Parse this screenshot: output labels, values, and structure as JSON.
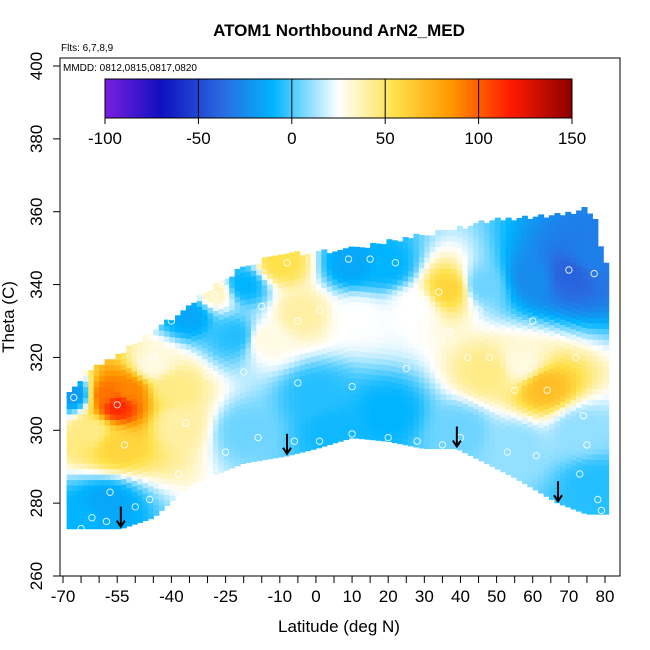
{
  "chart_data": {
    "type": "heatmap",
    "title": "ATOM1 Northbound ArN2_MED",
    "subtitle_lines": [
      "Flts: 6,7,8,9",
      "MMDD: 0812,0815,0817,0820"
    ],
    "xlabel": "Latitude (deg N)",
    "ylabel": "Theta (C)",
    "xlim": [
      -70,
      80
    ],
    "ylim": [
      260,
      400
    ],
    "x_ticks": [
      -70,
      -55,
      -40,
      -25,
      -10,
      0,
      10,
      20,
      30,
      40,
      50,
      60,
      70,
      80
    ],
    "x_tick_labels": [
      "-70",
      "-55",
      "-40",
      "-25",
      "-10",
      "0",
      "10",
      "20",
      "30",
      "40",
      "50",
      "60",
      "70",
      "80"
    ],
    "y_ticks": [
      260,
      280,
      300,
      320,
      340,
      360,
      380,
      400
    ],
    "y_tick_labels": [
      "260",
      "280",
      "300",
      "320",
      "340",
      "360",
      "380",
      "400"
    ],
    "colorbar": {
      "range": [
        -100,
        150
      ],
      "ticks": [
        -100,
        -50,
        0,
        50,
        100,
        150
      ],
      "tick_labels": [
        "-100",
        "-50",
        "0",
        "50",
        "100",
        "150"
      ],
      "colors": [
        "#7b1fe0",
        "#1010c0",
        "#2a6ae0",
        "#00b4ff",
        "#ffffff",
        "#ffe14a",
        "#ff9800",
        "#ff1a00",
        "#8b0000"
      ]
    },
    "arrows_lat": [
      -54,
      -8,
      39,
      67
    ],
    "top_boundary": [
      [
        -69,
        309
      ],
      [
        -64,
        315
      ],
      [
        -58,
        318
      ],
      [
        -50,
        323
      ],
      [
        -44,
        327
      ],
      [
        -36,
        333
      ],
      [
        -28,
        339
      ],
      [
        -20,
        344
      ],
      [
        -10,
        348
      ],
      [
        0,
        348
      ],
      [
        10,
        349
      ],
      [
        20,
        351
      ],
      [
        30,
        353
      ],
      [
        40,
        355
      ],
      [
        50,
        357
      ],
      [
        60,
        358
      ],
      [
        70,
        359
      ],
      [
        75,
        360
      ],
      [
        77,
        358
      ],
      [
        80,
        345
      ]
    ],
    "bottom_boundary": [
      [
        80,
        277
      ],
      [
        75,
        277
      ],
      [
        67,
        280
      ],
      [
        55,
        287
      ],
      [
        45,
        292
      ],
      [
        39,
        295
      ],
      [
        30,
        295
      ],
      [
        20,
        297
      ],
      [
        10,
        298
      ],
      [
        0,
        295
      ],
      [
        -8,
        293
      ],
      [
        -20,
        291
      ],
      [
        -35,
        285
      ],
      [
        -45,
        276
      ],
      [
        -54,
        273
      ],
      [
        -69,
        273
      ]
    ],
    "field_samples": [
      {
        "lat": -55,
        "theta": 307,
        "value": 115
      },
      {
        "lat": -58,
        "theta": 310,
        "value": 95
      },
      {
        "lat": -52,
        "theta": 311,
        "value": 90
      },
      {
        "lat": -55,
        "theta": 296,
        "value": 60
      },
      {
        "lat": -62,
        "theta": 300,
        "value": 45
      },
      {
        "lat": -38,
        "theta": 302,
        "value": 40
      },
      {
        "lat": -40,
        "theta": 312,
        "value": 45
      },
      {
        "lat": -45,
        "theta": 318,
        "value": 30
      },
      {
        "lat": -28,
        "theta": 338,
        "value": 35
      },
      {
        "lat": -10,
        "theta": 346,
        "value": 55
      },
      {
        "lat": -4,
        "theta": 332,
        "value": 40
      },
      {
        "lat": -14,
        "theta": 325,
        "value": 30
      },
      {
        "lat": 12,
        "theta": 331,
        "value": 25
      },
      {
        "lat": 27,
        "theta": 334,
        "value": 25
      },
      {
        "lat": 37,
        "theta": 339,
        "value": 60
      },
      {
        "lat": 48,
        "theta": 316,
        "value": 45
      },
      {
        "lat": 63,
        "theta": 312,
        "value": 70
      },
      {
        "lat": 57,
        "theta": 318,
        "value": 30
      },
      {
        "lat": 46,
        "theta": 340,
        "value": 5
      },
      {
        "lat": 70,
        "theta": 343,
        "value": -40
      },
      {
        "lat": 60,
        "theta": 342,
        "value": -25
      },
      {
        "lat": 76,
        "theta": 348,
        "value": -30
      },
      {
        "lat": 10,
        "theta": 346,
        "value": -15
      },
      {
        "lat": 20,
        "theta": 345,
        "value": -10
      },
      {
        "lat": -20,
        "theta": 340,
        "value": -10
      },
      {
        "lat": -22,
        "theta": 326,
        "value": -5
      },
      {
        "lat": 0,
        "theta": 310,
        "value": -5
      },
      {
        "lat": 20,
        "theta": 305,
        "value": -10
      },
      {
        "lat": -58,
        "theta": 280,
        "value": -15
      },
      {
        "lat": -65,
        "theta": 276,
        "value": -10
      },
      {
        "lat": -20,
        "theta": 300,
        "value": 5
      },
      {
        "lat": 5,
        "theta": 300,
        "value": -8
      },
      {
        "lat": 40,
        "theta": 300,
        "value": 5
      },
      {
        "lat": 55,
        "theta": 296,
        "value": 10
      },
      {
        "lat": 73,
        "theta": 300,
        "value": 10
      },
      {
        "lat": 77,
        "theta": 285,
        "value": -5
      },
      {
        "lat": -67,
        "theta": 310,
        "value": -20
      },
      {
        "lat": -35,
        "theta": 332,
        "value": -15
      }
    ],
    "observation_points": [
      [
        -55,
        307
      ],
      [
        -53,
        296
      ],
      [
        -57,
        283
      ],
      [
        -67,
        309
      ],
      [
        -36,
        302
      ],
      [
        -28,
        337
      ],
      [
        -26,
        341
      ],
      [
        -15,
        334
      ],
      [
        -8,
        346
      ],
      [
        -5,
        330
      ],
      [
        1,
        333
      ],
      [
        9,
        347
      ],
      [
        15,
        347
      ],
      [
        19,
        332
      ],
      [
        22,
        346
      ],
      [
        29,
        335
      ],
      [
        34,
        338
      ],
      [
        37,
        327
      ],
      [
        45,
        333
      ],
      [
        48,
        320
      ],
      [
        55,
        311
      ],
      [
        64,
        311
      ],
      [
        70,
        344
      ],
      [
        72,
        320
      ],
      [
        74,
        304
      ],
      [
        77,
        343
      ],
      [
        73,
        288
      ],
      [
        78,
        281
      ],
      [
        61,
        293
      ],
      [
        53,
        294
      ],
      [
        40,
        298
      ],
      [
        35,
        296
      ],
      [
        28,
        297
      ],
      [
        20,
        298
      ],
      [
        10,
        299
      ],
      [
        1,
        297
      ],
      [
        -6,
        297
      ],
      [
        -16,
        298
      ],
      [
        -25,
        294
      ],
      [
        -38,
        288
      ],
      [
        -46,
        281
      ],
      [
        -50,
        279
      ],
      [
        -62,
        276
      ],
      [
        -65,
        273
      ],
      [
        -58,
        275
      ],
      [
        -70,
        277
      ],
      [
        -30,
        315
      ],
      [
        -20,
        316
      ],
      [
        -5,
        313
      ],
      [
        10,
        312
      ],
      [
        25,
        317
      ],
      [
        42,
        320
      ],
      [
        60,
        330
      ],
      [
        -45,
        320
      ],
      [
        -40,
        330
      ],
      [
        68,
        305
      ],
      [
        75,
        296
      ],
      [
        79,
        278
      ]
    ]
  }
}
